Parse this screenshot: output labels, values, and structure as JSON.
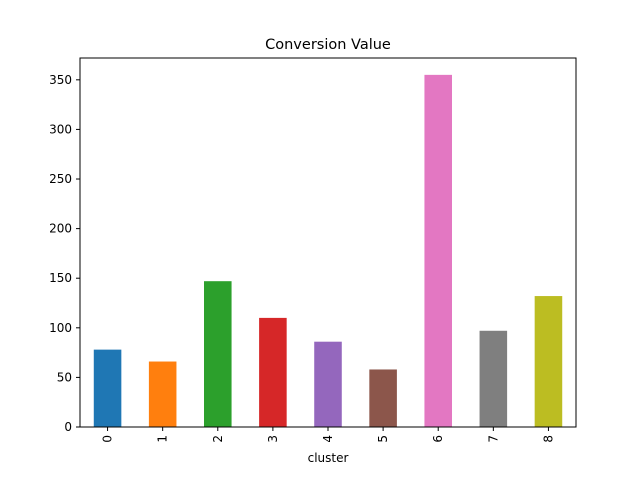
{
  "chart_data": {
    "type": "bar",
    "title": "Conversion Value",
    "xlabel": "cluster",
    "ylabel": "",
    "categories": [
      "0",
      "1",
      "2",
      "3",
      "4",
      "5",
      "6",
      "7",
      "8"
    ],
    "values": [
      78,
      66,
      147,
      110,
      86,
      58,
      355,
      97,
      132
    ],
    "colors": [
      "#1f77b4",
      "#ff7f0e",
      "#2ca02c",
      "#d62728",
      "#9467bd",
      "#8c564b",
      "#e377c2",
      "#7f7f7f",
      "#bcbd22"
    ],
    "ylim": [
      0,
      372
    ],
    "yticks": [
      0,
      50,
      100,
      150,
      200,
      250,
      300,
      350
    ],
    "grid": false,
    "legend": "none"
  }
}
